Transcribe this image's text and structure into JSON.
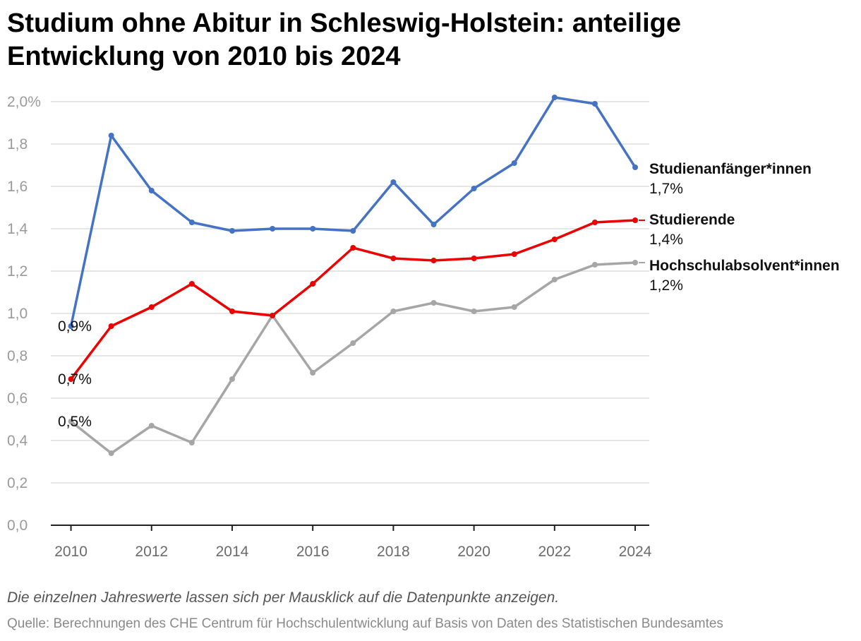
{
  "title": "Studium ohne Abitur in Schleswig-Holstein: anteilige Entwicklung von 2010 bis 2024",
  "note": "Die einzelnen Jahreswerte lassen sich per Mausklick auf die Datenpunkte anzeigen.",
  "source": "Quelle: Berechnungen des CHE Centrum für Hochschulentwicklung auf Basis von Daten des Statistischen Bundesamtes",
  "chart_data": {
    "type": "line",
    "title": "Studium ohne Abitur in Schleswig-Holstein: anteilige Entwicklung von 2010 bis 2024",
    "xlabel": "",
    "ylabel": "",
    "x": [
      2010,
      2011,
      2012,
      2013,
      2014,
      2015,
      2016,
      2017,
      2018,
      2019,
      2020,
      2021,
      2022,
      2023,
      2024
    ],
    "xticks": [
      "2010",
      "2012",
      "2014",
      "2016",
      "2018",
      "2020",
      "2022",
      "2024"
    ],
    "yticks": [
      "0,0",
      "0,2",
      "0,4",
      "0,6",
      "0,8",
      "1,0",
      "1,2",
      "1,4",
      "1,6",
      "1,8",
      "2,0%"
    ],
    "ylim": [
      0,
      2.0
    ],
    "grid": true,
    "series": [
      {
        "name": "Studienanfänger*innen",
        "color": "#4472c4",
        "values": [
          0.94,
          1.84,
          1.58,
          1.43,
          1.39,
          1.4,
          1.4,
          1.39,
          1.62,
          1.42,
          1.59,
          1.71,
          2.02,
          1.99,
          1.69
        ],
        "start_label": "0,9%",
        "end_label": "1,7%"
      },
      {
        "name": "Studierende",
        "color": "#ee0000",
        "values": [
          0.69,
          0.94,
          1.03,
          1.14,
          1.01,
          0.99,
          1.14,
          1.31,
          1.26,
          1.25,
          1.26,
          1.28,
          1.35,
          1.43,
          1.44
        ],
        "start_label": "0,7%",
        "end_label": "1,4%"
      },
      {
        "name": "Hochschulabsolvent*innen",
        "color": "#a6a6a6",
        "values": [
          0.49,
          0.34,
          0.47,
          0.39,
          0.69,
          0.99,
          0.72,
          0.86,
          1.01,
          1.05,
          1.01,
          1.03,
          1.16,
          1.23,
          1.24
        ],
        "start_label": "0,5%",
        "end_label": "1,2%"
      }
    ]
  }
}
